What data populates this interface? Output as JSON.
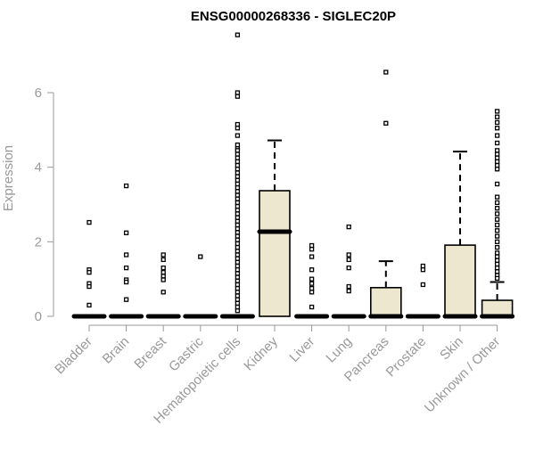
{
  "chart_data": {
    "type": "boxplot",
    "title": "ENSG00000268336 - SIGLEC20P",
    "xlabel": "",
    "ylabel": "Expression",
    "ylim": [
      -0.2,
      7.7
    ],
    "yticks": [
      0,
      2,
      4,
      6
    ],
    "grid": false,
    "legend": "none",
    "box_fill": "#ede7cf",
    "stroke_color": "#000000",
    "axis_color": "#999999",
    "categories": [
      "Bladder",
      "Brain",
      "Breast",
      "Gastric",
      "Hematopoietic cells",
      "Kidney",
      "Liver",
      "Lung",
      "Pancreas",
      "Prostate",
      "Skin",
      "Unknown / Other"
    ],
    "boxes": [
      {
        "q1": 0,
        "median": 0,
        "q3": 0,
        "whisker_low": 0,
        "whisker_high": 0,
        "outliers": [
          2.52,
          1.25,
          1.18,
          0.88,
          0.8,
          0.3
        ]
      },
      {
        "q1": 0,
        "median": 0,
        "q3": 0,
        "whisker_low": 0,
        "whisker_high": 0,
        "outliers": [
          3.5,
          2.24,
          1.65,
          1.3,
          0.98,
          0.92,
          0.45
        ]
      },
      {
        "q1": 0,
        "median": 0,
        "q3": 0,
        "whisker_low": 0,
        "whisker_high": 0,
        "outliers": [
          1.65,
          1.52,
          1.3,
          1.18,
          1.08,
          0.98,
          0.65
        ]
      },
      {
        "q1": 0,
        "median": 0,
        "q3": 0,
        "whisker_low": 0,
        "whisker_high": 0,
        "outliers": [
          1.6
        ]
      },
      {
        "q1": 0,
        "median": 0,
        "q3": 0,
        "whisker_low": 0,
        "whisker_high": 0,
        "outliers": [
          7.55,
          6.0,
          5.9,
          5.15,
          5.05,
          4.85,
          4.6,
          4.5,
          4.45,
          4.35,
          4.25,
          4.15,
          4.05,
          3.95,
          3.85,
          3.75,
          3.65,
          3.55,
          3.45,
          3.35,
          3.25,
          3.15,
          3.05,
          2.95,
          2.85,
          2.75,
          2.65,
          2.55,
          2.45,
          2.35,
          2.25,
          2.15,
          2.05,
          1.95,
          1.85,
          1.75,
          1.65,
          1.55,
          1.45,
          1.35,
          1.25,
          1.15,
          1.05,
          0.95,
          0.85,
          0.75,
          0.65,
          0.55,
          0.45,
          0.35,
          0.25,
          0.15
        ]
      },
      {
        "q1": 0,
        "median": 2.27,
        "q3": 3.37,
        "whisker_low": 0,
        "whisker_high": 4.72,
        "outliers": []
      },
      {
        "q1": 0,
        "median": 0,
        "q3": 0,
        "whisker_low": 0,
        "whisker_high": 0,
        "outliers": [
          1.9,
          1.8,
          1.6,
          1.25,
          1.0,
          0.88,
          0.75,
          0.65,
          0.25
        ]
      },
      {
        "q1": 0,
        "median": 0,
        "q3": 0,
        "whisker_low": 0,
        "whisker_high": 0,
        "outliers": [
          2.4,
          1.65,
          1.52,
          1.3,
          0.8,
          0.68
        ]
      },
      {
        "q1": 0,
        "median": 0,
        "q3": 0.77,
        "whisker_low": 0,
        "whisker_high": 1.48,
        "outliers": [
          6.55,
          5.18
        ]
      },
      {
        "q1": 0,
        "median": 0,
        "q3": 0,
        "whisker_low": 0,
        "whisker_high": 0,
        "outliers": [
          1.35,
          1.25,
          0.85
        ]
      },
      {
        "q1": 0,
        "median": 0,
        "q3": 1.91,
        "whisker_low": 0,
        "whisker_high": 4.42,
        "outliers": []
      },
      {
        "q1": 0,
        "median": 0,
        "q3": 0.43,
        "whisker_low": 0,
        "whisker_high": 0.92,
        "outliers": [
          5.5,
          5.35,
          5.2,
          5.05,
          4.85,
          4.65,
          4.45,
          4.35,
          4.25,
          4.15,
          4.05,
          3.95,
          3.55,
          3.2,
          3.05,
          2.9,
          2.75,
          2.6,
          2.45,
          2.3,
          2.15,
          2.0,
          1.85,
          1.7,
          1.6,
          1.5,
          1.4,
          1.3,
          1.2,
          1.1,
          1.02
        ]
      }
    ]
  }
}
